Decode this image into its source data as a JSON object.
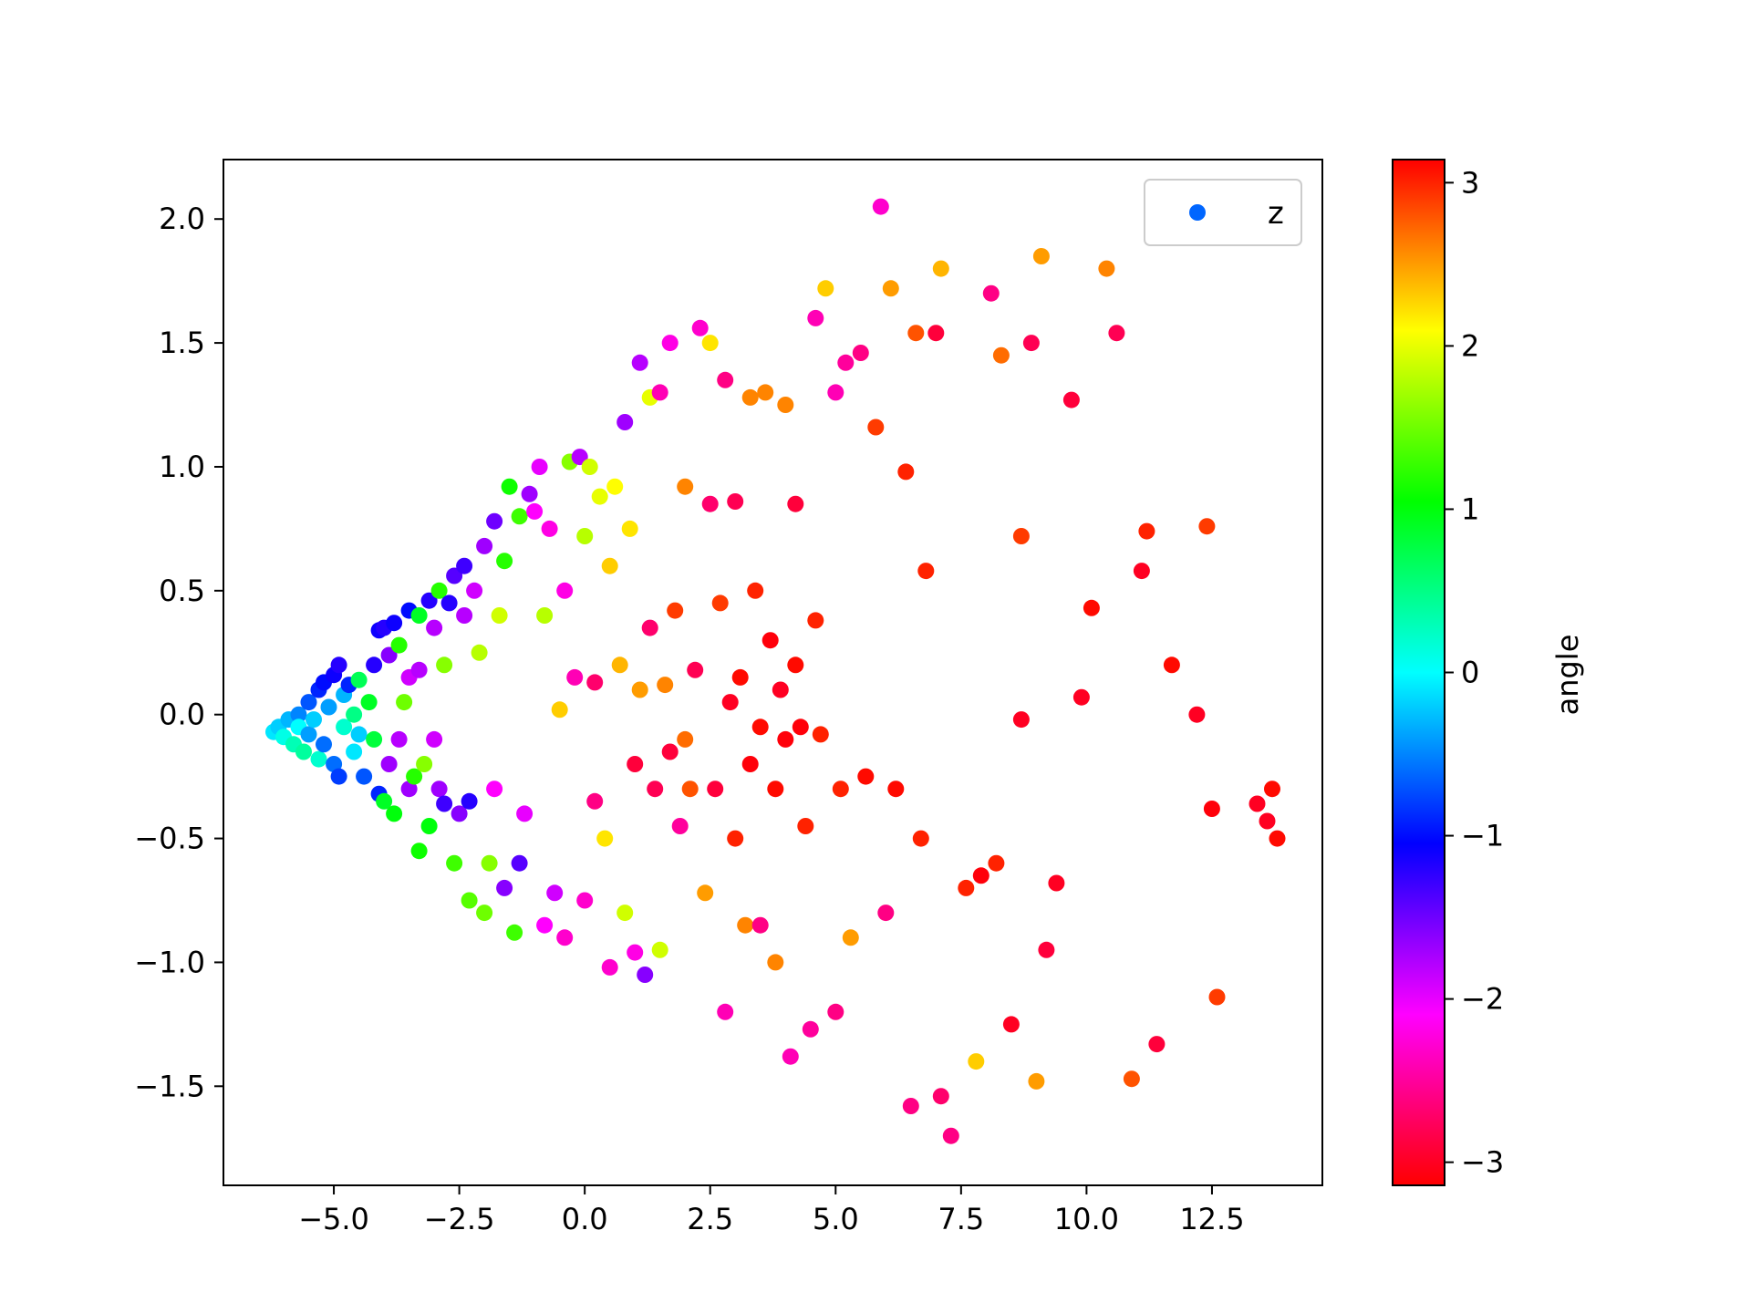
{
  "chart_data": {
    "type": "scatter",
    "title": "",
    "xlabel": "",
    "ylabel": "",
    "xlim": [
      -7.2,
      14.7
    ],
    "ylim": [
      -1.9,
      2.24
    ],
    "xticks": [
      -5.0,
      -2.5,
      0.0,
      2.5,
      5.0,
      7.5,
      10.0,
      12.5
    ],
    "xtick_labels": [
      "−5.0",
      "−2.5",
      "0.0",
      "2.5",
      "5.0",
      "7.5",
      "10.0",
      "12.5"
    ],
    "yticks": [
      -1.5,
      -1.0,
      -0.5,
      0.0,
      0.5,
      1.0,
      1.5,
      2.0
    ],
    "ytick_labels": [
      "−1.5",
      "−1.0",
      "−0.5",
      "0.0",
      "0.5",
      "1.0",
      "1.5",
      "2.0"
    ],
    "grid": false,
    "legend": {
      "position": "top-right",
      "entries": [
        {
          "label": "z",
          "color": "#0066ff"
        }
      ]
    },
    "colorbar": {
      "label": "angle",
      "colormap": "hsv",
      "range": [
        -3.14159,
        3.14159
      ],
      "ticks": [
        -3,
        -2,
        -1,
        0,
        1,
        2,
        3
      ],
      "tick_labels": [
        "−3",
        "−2",
        "−1",
        "0",
        "1",
        "2",
        "3"
      ]
    },
    "series": [
      {
        "name": "z",
        "points": [
          [
            -6.2,
            -0.07,
            0.1
          ],
          [
            -6.1,
            -0.05,
            0.2
          ],
          [
            -6.0,
            -0.09,
            -0.1
          ],
          [
            -5.9,
            -0.02,
            0.3
          ],
          [
            -5.8,
            -0.12,
            -0.3
          ],
          [
            -5.7,
            0.0,
            0.5
          ],
          [
            -5.7,
            -0.05,
            0.0
          ],
          [
            -5.6,
            -0.15,
            -0.4
          ],
          [
            -5.5,
            0.05,
            0.7
          ],
          [
            -5.5,
            -0.08,
            0.4
          ],
          [
            -5.4,
            -0.02,
            0.2
          ],
          [
            -5.3,
            0.1,
            0.9
          ],
          [
            -5.3,
            -0.18,
            -0.2
          ],
          [
            -5.2,
            0.13,
            1.0
          ],
          [
            -5.2,
            -0.12,
            0.6
          ],
          [
            -5.1,
            0.03,
            0.4
          ],
          [
            -5.0,
            0.16,
            1.1
          ],
          [
            -5.0,
            -0.2,
            0.6
          ],
          [
            -4.9,
            0.2,
            1.2
          ],
          [
            -4.9,
            -0.25,
            0.8
          ],
          [
            -4.8,
            0.08,
            0.3
          ],
          [
            -4.8,
            -0.05,
            -0.2
          ],
          [
            -4.7,
            0.12,
            0.9
          ],
          [
            -4.6,
            -0.15,
            0.1
          ],
          [
            -4.6,
            0.0,
            -0.5
          ],
          [
            -4.5,
            0.14,
            -0.7
          ],
          [
            -4.5,
            -0.08,
            0.2
          ],
          [
            -4.4,
            -0.25,
            0.7
          ],
          [
            -4.3,
            0.05,
            -0.9
          ],
          [
            -4.2,
            -0.1,
            -0.8
          ],
          [
            -4.2,
            0.2,
            1.2
          ],
          [
            -4.1,
            0.34,
            1.1
          ],
          [
            -4.1,
            -0.32,
            0.9
          ],
          [
            -4.0,
            0.35,
            1.2
          ],
          [
            -4.0,
            -0.35,
            -0.9
          ],
          [
            -3.9,
            -0.2,
            1.7
          ],
          [
            -3.9,
            0.24,
            1.6
          ],
          [
            -3.8,
            0.37,
            1.1
          ],
          [
            -3.8,
            -0.4,
            -1.0
          ],
          [
            -3.7,
            0.28,
            -1.2
          ],
          [
            -3.7,
            -0.1,
            1.8
          ],
          [
            -3.6,
            0.05,
            -1.5
          ],
          [
            -3.5,
            0.42,
            1.0
          ],
          [
            -3.5,
            0.15,
            1.9
          ],
          [
            -3.5,
            -0.3,
            1.7
          ],
          [
            -3.4,
            -0.25,
            -1.2
          ],
          [
            -3.3,
            0.18,
            1.8
          ],
          [
            -3.3,
            0.4,
            -0.9
          ],
          [
            -3.3,
            -0.55,
            -1.1
          ],
          [
            -3.2,
            -0.2,
            -1.6
          ],
          [
            -3.1,
            0.46,
            1.2
          ],
          [
            -3.1,
            -0.45,
            -1.0
          ],
          [
            -3.0,
            0.35,
            1.8
          ],
          [
            -3.0,
            -0.1,
            1.9
          ],
          [
            -2.9,
            0.5,
            -1.2
          ],
          [
            -2.9,
            -0.3,
            1.7
          ],
          [
            -2.8,
            0.2,
            -1.6
          ],
          [
            -2.8,
            -0.36,
            1.3
          ],
          [
            -2.7,
            0.45,
            1.2
          ],
          [
            -2.6,
            -0.6,
            -1.3
          ],
          [
            -2.6,
            0.56,
            1.4
          ],
          [
            -2.5,
            -0.4,
            1.6
          ],
          [
            -2.4,
            0.4,
            1.8
          ],
          [
            -2.4,
            0.6,
            1.3
          ],
          [
            -2.3,
            -0.35,
            1.2
          ],
          [
            -2.3,
            -0.75,
            -1.4
          ],
          [
            -2.2,
            0.5,
            1.9
          ],
          [
            -2.1,
            0.25,
            -1.8
          ],
          [
            -2.0,
            -0.8,
            -1.5
          ],
          [
            -2.0,
            0.68,
            1.7
          ],
          [
            -1.9,
            -0.6,
            -1.6
          ],
          [
            -1.8,
            0.78,
            1.5
          ],
          [
            -1.8,
            -0.3,
            2.1
          ],
          [
            -1.7,
            0.4,
            -1.9
          ],
          [
            -1.6,
            -0.7,
            1.6
          ],
          [
            -1.6,
            0.62,
            -1.2
          ],
          [
            -1.5,
            0.92,
            -1.1
          ],
          [
            -1.4,
            -0.88,
            -1.3
          ],
          [
            -1.3,
            0.8,
            -1.3
          ],
          [
            -1.3,
            -0.6,
            1.4
          ],
          [
            -1.2,
            -0.4,
            2.0
          ],
          [
            -1.1,
            0.89,
            1.7
          ],
          [
            -1.0,
            0.82,
            2.1
          ],
          [
            -0.9,
            1.0,
            2.0
          ],
          [
            -0.8,
            -0.85,
            2.1
          ],
          [
            -0.8,
            0.4,
            -1.8
          ],
          [
            -0.7,
            0.75,
            2.2
          ],
          [
            -0.6,
            -0.72,
            1.9
          ],
          [
            -0.5,
            0.02,
            -2.3
          ],
          [
            -0.4,
            0.5,
            2.2
          ],
          [
            -0.4,
            -0.9,
            2.3
          ],
          [
            -0.3,
            1.02,
            -1.6
          ],
          [
            -0.2,
            0.15,
            2.4
          ],
          [
            -0.1,
            1.04,
            1.8
          ],
          [
            0.0,
            -0.75,
            2.3
          ],
          [
            0.0,
            0.72,
            -1.8
          ],
          [
            0.1,
            1.0,
            -1.9
          ],
          [
            0.2,
            -0.35,
            2.6
          ],
          [
            0.2,
            0.13,
            2.7
          ],
          [
            0.3,
            0.88,
            -2.0
          ],
          [
            0.4,
            -0.5,
            -2.2
          ],
          [
            0.5,
            0.6,
            -2.3
          ],
          [
            0.5,
            -1.02,
            2.3
          ],
          [
            0.6,
            0.92,
            -2.1
          ],
          [
            0.7,
            0.2,
            -2.4
          ],
          [
            0.8,
            -0.8,
            -1.9
          ],
          [
            0.8,
            1.18,
            1.7
          ],
          [
            0.9,
            0.75,
            -2.2
          ],
          [
            1.0,
            -0.2,
            2.9
          ],
          [
            1.0,
            -0.96,
            2.2
          ],
          [
            1.1,
            0.1,
            -2.5
          ],
          [
            1.1,
            1.42,
            1.8
          ],
          [
            1.2,
            -1.05,
            1.6
          ],
          [
            1.3,
            0.35,
            2.7
          ],
          [
            1.3,
            1.28,
            -2.0
          ],
          [
            1.4,
            -0.3,
            2.8
          ],
          [
            1.5,
            1.3,
            2.4
          ],
          [
            1.5,
            -0.95,
            -1.9
          ],
          [
            1.6,
            0.12,
            -2.6
          ],
          [
            1.7,
            -0.15,
            2.9
          ],
          [
            1.7,
            1.5,
            2.2
          ],
          [
            1.8,
            0.42,
            -2.9
          ],
          [
            1.9,
            -0.45,
            2.5
          ],
          [
            2.0,
            0.92,
            -2.6
          ],
          [
            2.0,
            -0.1,
            -2.7
          ],
          [
            2.1,
            -0.3,
            -2.8
          ],
          [
            2.2,
            0.18,
            2.8
          ],
          [
            2.3,
            1.56,
            2.3
          ],
          [
            2.4,
            -0.72,
            -2.5
          ],
          [
            2.5,
            0.85,
            2.7
          ],
          [
            2.5,
            1.5,
            -2.2
          ],
          [
            2.6,
            -0.3,
            2.9
          ],
          [
            2.7,
            0.45,
            -2.9
          ],
          [
            2.8,
            -1.2,
            2.4
          ],
          [
            2.8,
            1.35,
            2.6
          ],
          [
            2.9,
            0.05,
            3.0
          ],
          [
            3.0,
            0.86,
            2.8
          ],
          [
            3.0,
            -0.5,
            -3.0
          ],
          [
            3.1,
            0.15,
            -3.1
          ],
          [
            3.2,
            -0.85,
            -2.6
          ],
          [
            3.3,
            1.28,
            -2.6
          ],
          [
            3.3,
            -0.2,
            3.1
          ],
          [
            3.4,
            0.5,
            -3.0
          ],
          [
            3.5,
            -0.85,
            2.6
          ],
          [
            3.5,
            -0.05,
            -3.1
          ],
          [
            3.6,
            1.3,
            -2.6
          ],
          [
            3.7,
            0.3,
            3.1
          ],
          [
            3.8,
            -0.3,
            -3.1
          ],
          [
            3.8,
            -1.0,
            -2.6
          ],
          [
            3.9,
            0.1,
            3.0
          ],
          [
            4.0,
            -0.1,
            3.1
          ],
          [
            4.0,
            1.25,
            -2.6
          ],
          [
            4.1,
            -1.38,
            2.4
          ],
          [
            4.2,
            0.85,
            2.9
          ],
          [
            4.2,
            0.2,
            -3.1
          ],
          [
            4.3,
            -0.05,
            3.1
          ],
          [
            4.4,
            -0.45,
            -3.0
          ],
          [
            4.5,
            -1.27,
            2.5
          ],
          [
            4.6,
            0.38,
            -3.0
          ],
          [
            4.6,
            1.6,
            2.4
          ],
          [
            4.7,
            -0.08,
            -3.0
          ],
          [
            4.8,
            1.72,
            -2.3
          ],
          [
            5.0,
            -1.2,
            2.6
          ],
          [
            5.0,
            1.3,
            2.4
          ],
          [
            5.1,
            -0.3,
            -3.0
          ],
          [
            5.2,
            1.42,
            2.5
          ],
          [
            5.3,
            -0.9,
            -2.5
          ],
          [
            5.5,
            1.46,
            2.6
          ],
          [
            5.6,
            -0.25,
            -3.1
          ],
          [
            5.8,
            1.16,
            -2.9
          ],
          [
            5.9,
            2.05,
            2.3
          ],
          [
            6.0,
            -0.8,
            2.6
          ],
          [
            6.1,
            1.72,
            -2.5
          ],
          [
            6.2,
            -0.3,
            -3.1
          ],
          [
            6.4,
            0.98,
            -3.0
          ],
          [
            6.5,
            -1.58,
            2.6
          ],
          [
            6.6,
            1.54,
            -2.8
          ],
          [
            6.7,
            -0.5,
            -3.0
          ],
          [
            6.8,
            0.58,
            -3.0
          ],
          [
            7.0,
            1.54,
            2.9
          ],
          [
            7.1,
            1.8,
            -2.4
          ],
          [
            7.1,
            -1.54,
            2.7
          ],
          [
            7.3,
            -1.7,
            2.6
          ],
          [
            7.6,
            -0.7,
            -3.0
          ],
          [
            7.8,
            -1.4,
            -2.3
          ],
          [
            7.9,
            -0.65,
            3.1
          ],
          [
            8.1,
            1.7,
            2.6
          ],
          [
            8.2,
            -0.6,
            -3.0
          ],
          [
            8.3,
            1.45,
            -2.7
          ],
          [
            8.5,
            -1.25,
            3.0
          ],
          [
            8.7,
            0.72,
            -2.9
          ],
          [
            8.7,
            -0.02,
            3.0
          ],
          [
            8.9,
            1.5,
            2.8
          ],
          [
            9.0,
            -1.48,
            -2.5
          ],
          [
            9.1,
            1.85,
            -2.5
          ],
          [
            9.2,
            -0.95,
            2.9
          ],
          [
            9.4,
            -0.68,
            3.0
          ],
          [
            9.7,
            1.27,
            2.9
          ],
          [
            9.9,
            0.07,
            3.0
          ],
          [
            10.1,
            0.43,
            -3.1
          ],
          [
            10.4,
            1.8,
            -2.6
          ],
          [
            10.6,
            1.54,
            2.8
          ],
          [
            10.9,
            -1.47,
            -2.8
          ],
          [
            11.1,
            0.58,
            3.0
          ],
          [
            11.2,
            0.74,
            -3.0
          ],
          [
            11.4,
            -1.33,
            2.9
          ],
          [
            11.7,
            0.2,
            -3.1
          ],
          [
            12.2,
            0.0,
            3.0
          ],
          [
            12.4,
            0.76,
            -2.9
          ],
          [
            12.5,
            -0.38,
            3.1
          ],
          [
            12.6,
            -1.14,
            -2.9
          ],
          [
            13.4,
            -0.36,
            3.0
          ],
          [
            13.6,
            -0.43,
            3.0
          ],
          [
            13.7,
            -0.3,
            -3.1
          ],
          [
            13.8,
            -0.5,
            -3.1
          ]
        ]
      }
    ]
  }
}
